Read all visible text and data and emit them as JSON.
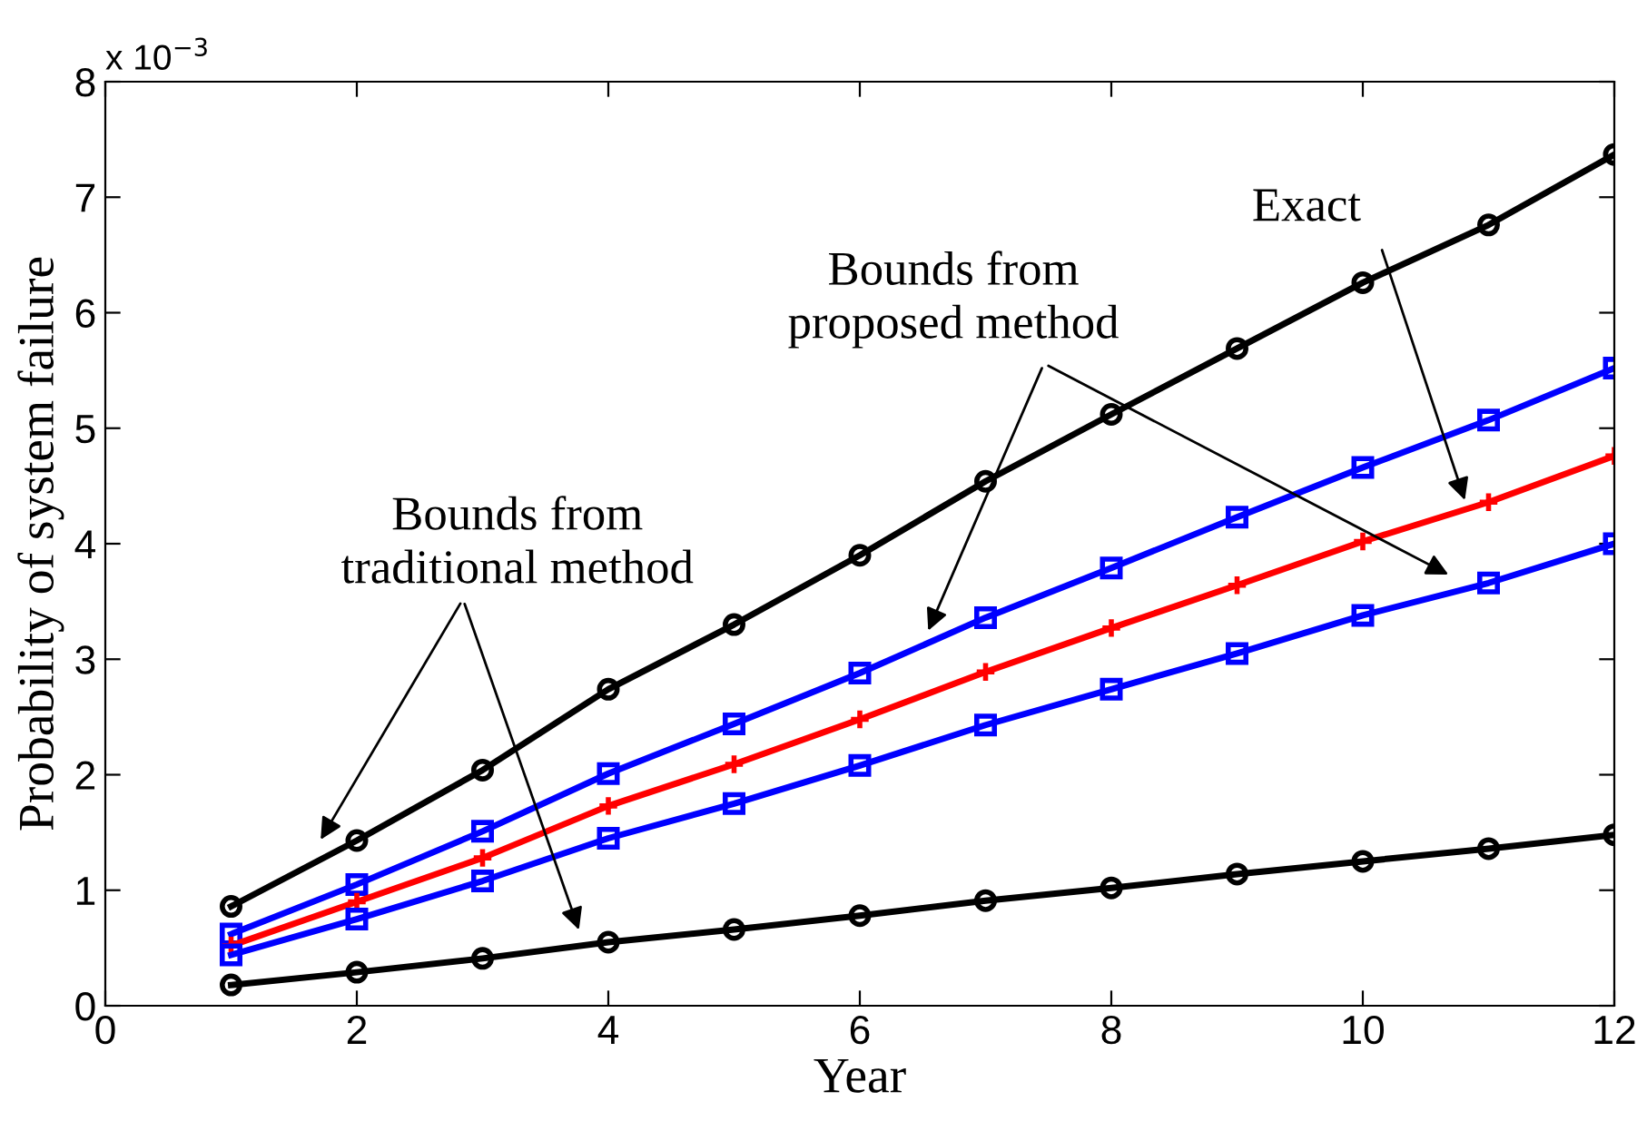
{
  "chart_data": {
    "type": "line",
    "xlabel": "Year",
    "ylabel": "Probability of system failure",
    "x": [
      1,
      2,
      3,
      4,
      5,
      6,
      7,
      8,
      9,
      10,
      11,
      12
    ],
    "series": [
      {
        "color": "#000000",
        "marker": "circle",
        "values": [
          0.86,
          1.43,
          2.04,
          2.74,
          3.3,
          3.9,
          4.54,
          5.12,
          5.69,
          6.26,
          6.76,
          7.37
        ]
      },
      {
        "color": "#0000ff",
        "marker": "square",
        "values": [
          0.62,
          1.05,
          1.51,
          2.01,
          2.44,
          2.88,
          3.36,
          3.79,
          4.23,
          4.66,
          5.07,
          5.52
        ]
      },
      {
        "color": "#ff0000",
        "marker": "cross",
        "values": [
          0.52,
          0.9,
          1.28,
          1.73,
          2.09,
          2.48,
          2.89,
          3.27,
          3.64,
          4.02,
          4.36,
          4.76
        ]
      },
      {
        "color": "#0000ff",
        "marker": "square",
        "values": [
          0.44,
          0.75,
          1.08,
          1.45,
          1.75,
          2.08,
          2.43,
          2.74,
          3.05,
          3.38,
          3.66,
          4.0
        ]
      },
      {
        "color": "#000000",
        "marker": "circle",
        "values": [
          0.18,
          0.29,
          0.41,
          0.55,
          0.66,
          0.78,
          0.91,
          1.02,
          1.14,
          1.25,
          1.36,
          1.48
        ]
      }
    ],
    "xlim": [
      0,
      12
    ],
    "xticks": [
      0,
      2,
      4,
      6,
      8,
      10,
      12
    ],
    "ylim": [
      0,
      8
    ],
    "yticks": [
      0,
      1,
      2,
      3,
      4,
      5,
      6,
      7,
      8
    ],
    "annotations": [
      "x 10$^{−3}$",
      "Exact",
      "Bounds from\nproposed method",
      "Bounds from\ntraditional method"
    ],
    "grid": false,
    "legend": false,
    "line_style": "solid"
  }
}
